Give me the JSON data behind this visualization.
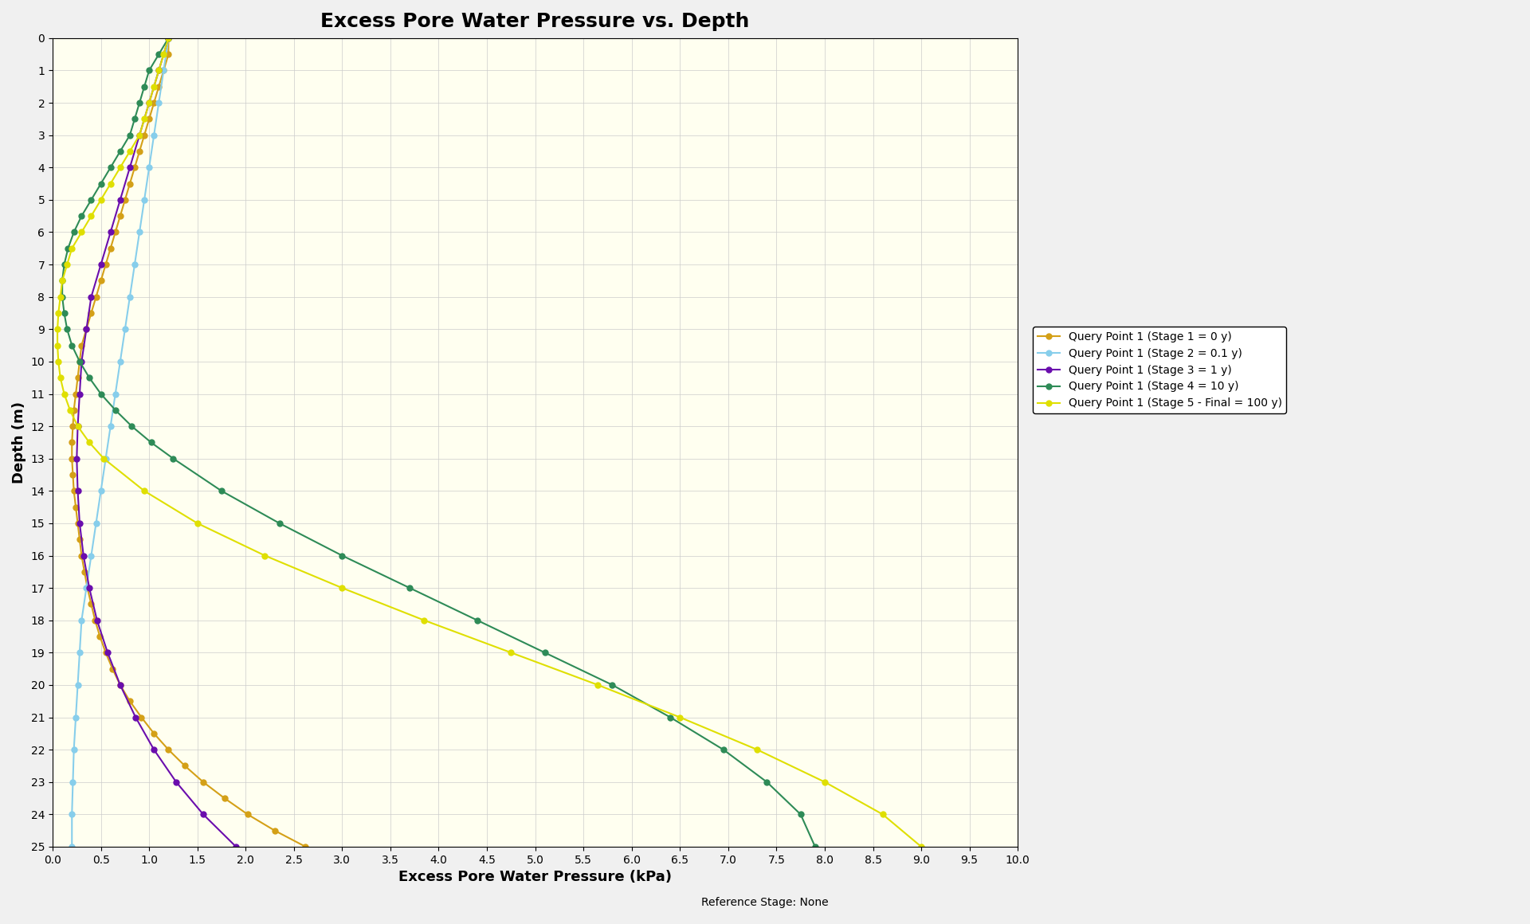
{
  "title": "Excess Pore Water Pressure vs. Depth",
  "xlabel": "Excess Pore Water Pressure (kPa)",
  "ylabel": "Depth (m)",
  "footer": "Reference Stage: None",
  "xlim": [
    0,
    10
  ],
  "ylim": [
    25,
    0
  ],
  "xticks": [
    0,
    0.5,
    1,
    1.5,
    2,
    2.5,
    3,
    3.5,
    4,
    4.5,
    5,
    5.5,
    6,
    6.5,
    7,
    7.5,
    8,
    8.5,
    9,
    9.5,
    10
  ],
  "yticks": [
    0,
    1,
    2,
    3,
    4,
    5,
    6,
    7,
    8,
    9,
    10,
    11,
    12,
    13,
    14,
    15,
    16,
    17,
    18,
    19,
    20,
    21,
    22,
    23,
    24,
    25
  ],
  "background_color": "#FFFFF0",
  "series": [
    {
      "label": "Query Point 1 (Stage 1 = 0 y)",
      "color": "#D4A017",
      "marker": "o",
      "depth": [
        0,
        0.5,
        1.0,
        1.5,
        2.0,
        2.5,
        3.0,
        3.5,
        4.0,
        4.5,
        5.0,
        5.5,
        6.0,
        6.5,
        7.0,
        7.5,
        8.0,
        8.5,
        9.0,
        9.5,
        10.0,
        10.5,
        11.0,
        11.5,
        12.0,
        12.5,
        13.0,
        13.5,
        14.0,
        14.5,
        15.0,
        15.5,
        16.0,
        16.5,
        17.0,
        17.5,
        18.0,
        18.5,
        19.0,
        19.5,
        20.0,
        20.5,
        21.0,
        21.5,
        22.0,
        22.5,
        23.0,
        23.5,
        24.0,
        24.5,
        25.0
      ],
      "pressure": [
        1.2,
        1.2,
        1.15,
        1.1,
        1.05,
        1.0,
        0.95,
        0.9,
        0.85,
        0.8,
        0.75,
        0.7,
        0.65,
        0.6,
        0.55,
        0.5,
        0.45,
        0.4,
        0.35,
        0.3,
        0.28,
        0.26,
        0.24,
        0.22,
        0.21,
        0.2,
        0.2,
        0.21,
        0.22,
        0.24,
        0.26,
        0.28,
        0.3,
        0.33,
        0.36,
        0.4,
        0.44,
        0.49,
        0.55,
        0.62,
        0.7,
        0.8,
        0.92,
        1.05,
        1.2,
        1.37,
        1.56,
        1.78,
        2.02,
        2.3,
        2.62
      ]
    },
    {
      "label": "Query Point 1 (Stage 2 = 0.1 y)",
      "color": "#87CEEB",
      "marker": "o",
      "depth": [
        0,
        1.0,
        2.0,
        3.0,
        4.0,
        5.0,
        6.0,
        7.0,
        8.0,
        9.0,
        10.0,
        11.0,
        12.0,
        13.0,
        14.0,
        15.0,
        16.0,
        17.0,
        18.0,
        19.0,
        20.0,
        21.0,
        22.0,
        23.0,
        24.0,
        25.0
      ],
      "pressure": [
        1.2,
        1.15,
        1.1,
        1.05,
        1.0,
        0.95,
        0.9,
        0.85,
        0.8,
        0.75,
        0.7,
        0.65,
        0.6,
        0.55,
        0.5,
        0.45,
        0.4,
        0.35,
        0.3,
        0.28,
        0.26,
        0.24,
        0.22,
        0.21,
        0.2,
        0.2
      ]
    },
    {
      "label": "Query Point 1 (Stage 3 = 1 y)",
      "color": "#6A0DAD",
      "marker": "o",
      "depth": [
        0,
        1.0,
        2.0,
        3.0,
        4.0,
        5.0,
        6.0,
        7.0,
        8.0,
        9.0,
        10.0,
        11.0,
        12.0,
        13.0,
        14.0,
        15.0,
        16.0,
        17.0,
        18.0,
        19.0,
        20.0,
        21.0,
        22.0,
        23.0,
        24.0,
        25.0
      ],
      "pressure": [
        1.2,
        1.1,
        1.0,
        0.9,
        0.8,
        0.7,
        0.6,
        0.5,
        0.4,
        0.35,
        0.3,
        0.28,
        0.26,
        0.25,
        0.26,
        0.28,
        0.32,
        0.38,
        0.46,
        0.57,
        0.7,
        0.86,
        1.05,
        1.28,
        1.56,
        1.9
      ]
    },
    {
      "label": "Query Point 1 (Stage 4 = 10 y)",
      "color": "#2E8B57",
      "marker": "o",
      "depth": [
        0,
        0.5,
        1.0,
        1.5,
        2.0,
        2.5,
        3.0,
        3.5,
        4.0,
        4.5,
        5.0,
        5.5,
        6.0,
        6.5,
        7.0,
        7.5,
        8.0,
        8.5,
        9.0,
        9.5,
        10.0,
        10.5,
        11.0,
        11.5,
        12.0,
        12.5,
        13.0,
        14.0,
        15.0,
        16.0,
        17.0,
        18.0,
        19.0,
        20.0,
        21.0,
        22.0,
        23.0,
        24.0,
        25.0
      ],
      "pressure": [
        1.2,
        1.1,
        1.0,
        0.95,
        0.9,
        0.85,
        0.8,
        0.7,
        0.6,
        0.5,
        0.4,
        0.3,
        0.22,
        0.16,
        0.12,
        0.1,
        0.1,
        0.12,
        0.15,
        0.2,
        0.28,
        0.38,
        0.5,
        0.65,
        0.82,
        1.02,
        1.25,
        1.75,
        2.35,
        3.0,
        3.7,
        4.4,
        5.1,
        5.8,
        6.4,
        6.95,
        7.4,
        7.75,
        7.9
      ]
    },
    {
      "label": "Query Point 1 (Stage 5 - Final = 100 y)",
      "color": "#DFDF00",
      "marker": "o",
      "depth": [
        0,
        0.5,
        1.0,
        1.5,
        2.0,
        2.5,
        3.0,
        3.5,
        4.0,
        4.5,
        5.0,
        5.5,
        6.0,
        6.5,
        7.0,
        7.5,
        8.0,
        8.5,
        9.0,
        9.5,
        10.0,
        10.5,
        11.0,
        11.5,
        12.0,
        12.5,
        13.0,
        14.0,
        15.0,
        16.0,
        17.0,
        18.0,
        19.0,
        20.0,
        21.0,
        22.0,
        23.0,
        24.0,
        25.0
      ],
      "pressure": [
        1.2,
        1.15,
        1.1,
        1.05,
        1.0,
        0.95,
        0.9,
        0.8,
        0.7,
        0.6,
        0.5,
        0.4,
        0.3,
        0.2,
        0.15,
        0.1,
        0.08,
        0.06,
        0.05,
        0.05,
        0.06,
        0.08,
        0.12,
        0.18,
        0.26,
        0.38,
        0.53,
        0.95,
        1.5,
        2.2,
        3.0,
        3.85,
        4.75,
        5.65,
        6.5,
        7.3,
        8.0,
        8.6,
        9.0
      ]
    }
  ]
}
